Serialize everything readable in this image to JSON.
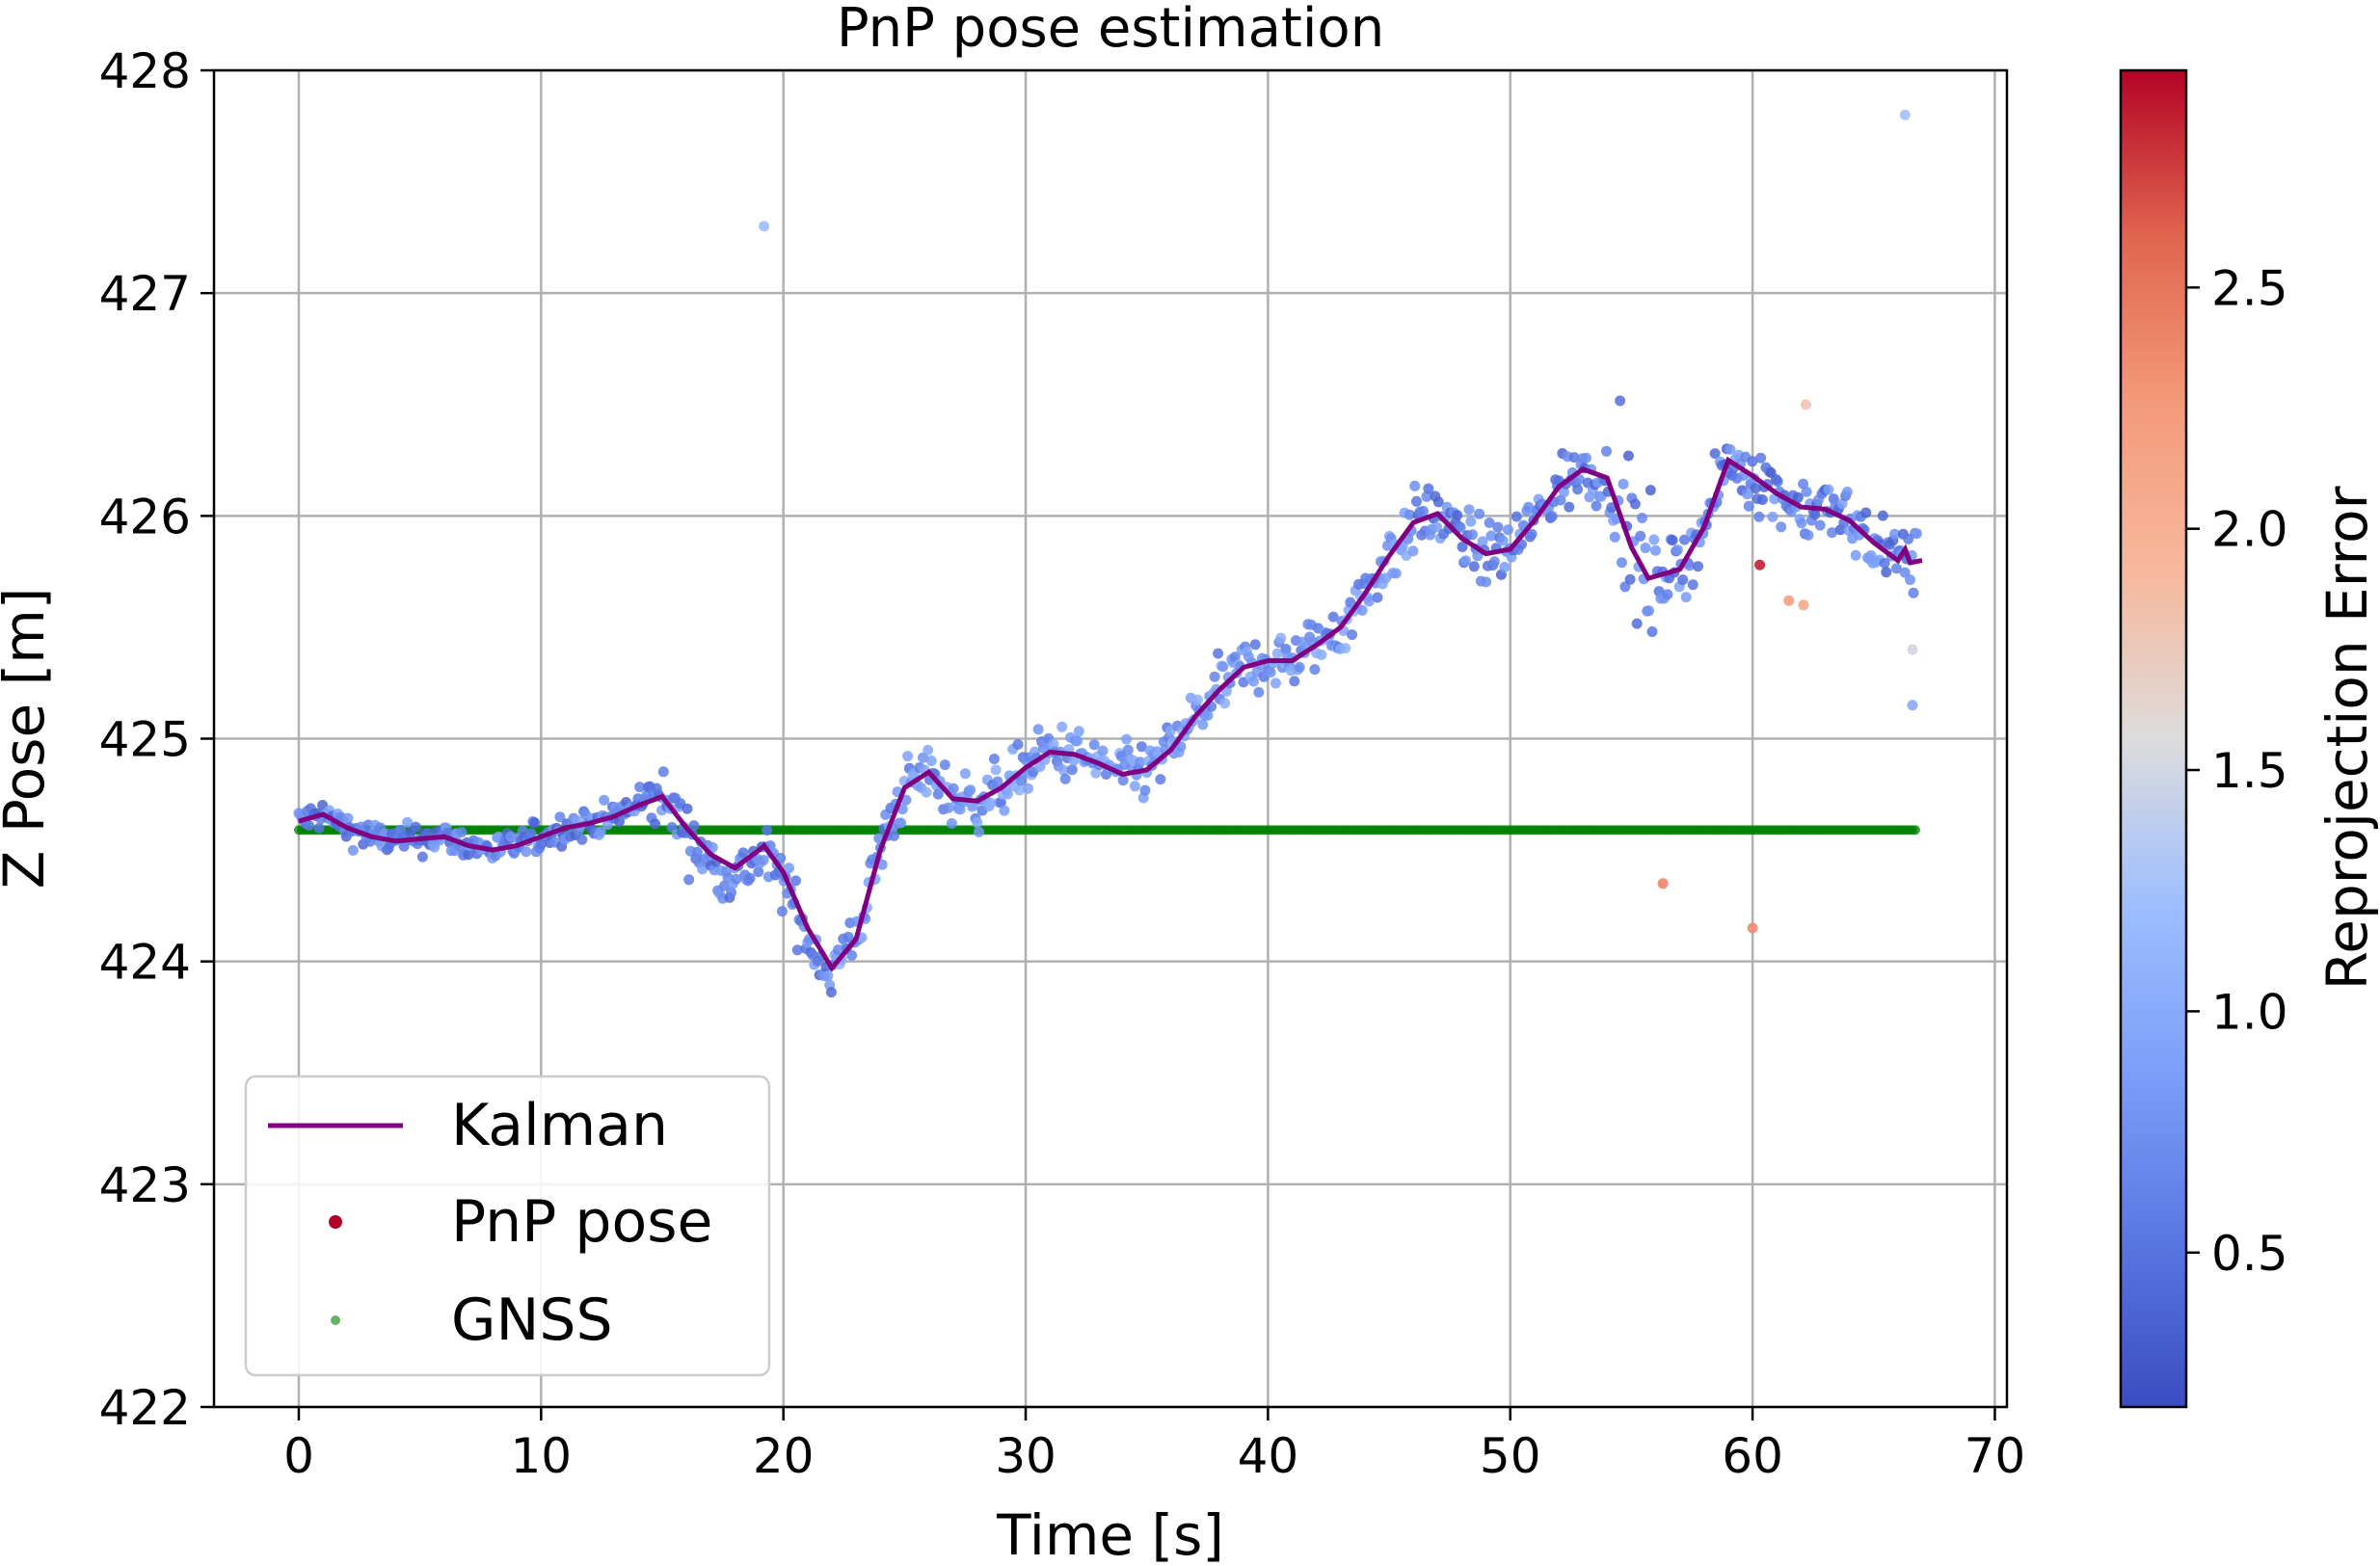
{
  "chart_data": {
    "type": "scatter",
    "title": "PnP pose estimation",
    "xlabel": "Time [s]",
    "ylabel": "Z Pose [m]",
    "xlim": [
      -3.5,
      70.5
    ],
    "ylim": [
      422,
      428
    ],
    "xticks": [
      "0",
      "10",
      "20",
      "30",
      "40",
      "50",
      "60",
      "70"
    ],
    "yticks": [
      "422",
      "423",
      "424",
      "425",
      "426",
      "427",
      "428"
    ],
    "grid": true,
    "legend_position": "lower-left",
    "legend": [
      "Kalman",
      "PnP pose",
      "GNSS"
    ],
    "colorbar": {
      "label": "Reprojection Error",
      "colormap": "coolwarm",
      "range": [
        0.18,
        2.95
      ],
      "ticks": [
        "0.5",
        "1.0",
        "1.5",
        "2.0",
        "2.5"
      ]
    },
    "series": [
      {
        "name": "Kalman",
        "kind": "line",
        "color": "#800080",
        "points": [
          [
            0,
            424.63
          ],
          [
            1,
            424.66
          ],
          [
            2,
            424.6
          ],
          [
            3,
            424.56
          ],
          [
            4,
            424.54
          ],
          [
            5,
            424.55
          ],
          [
            6,
            424.56
          ],
          [
            7,
            424.52
          ],
          [
            8,
            424.5
          ],
          [
            9,
            424.52
          ],
          [
            10,
            424.56
          ],
          [
            11,
            424.6
          ],
          [
            12,
            424.62
          ],
          [
            13,
            424.65
          ],
          [
            14,
            424.7
          ],
          [
            15,
            424.74
          ],
          [
            16,
            424.6
          ],
          [
            17,
            424.48
          ],
          [
            18,
            424.42
          ],
          [
            19,
            424.5
          ],
          [
            19.2,
            424.52
          ],
          [
            20,
            424.4
          ],
          [
            21,
            424.15
          ],
          [
            22,
            423.97
          ],
          [
            23,
            424.1
          ],
          [
            24,
            424.5
          ],
          [
            25,
            424.78
          ],
          [
            26,
            424.85
          ],
          [
            27,
            424.73
          ],
          [
            28,
            424.72
          ],
          [
            29,
            424.78
          ],
          [
            30,
            424.87
          ],
          [
            31,
            424.94
          ],
          [
            32,
            424.93
          ],
          [
            33,
            424.89
          ],
          [
            34,
            424.84
          ],
          [
            35,
            424.86
          ],
          [
            36,
            424.95
          ],
          [
            37,
            425.1
          ],
          [
            38,
            425.22
          ],
          [
            39,
            425.32
          ],
          [
            40,
            425.35
          ],
          [
            41,
            425.35
          ],
          [
            42,
            425.42
          ],
          [
            43,
            425.5
          ],
          [
            44,
            425.65
          ],
          [
            45,
            425.82
          ],
          [
            46,
            425.97
          ],
          [
            47,
            426.01
          ],
          [
            48,
            425.9
          ],
          [
            49,
            425.83
          ],
          [
            50,
            425.85
          ],
          [
            51,
            425.98
          ],
          [
            52,
            426.13
          ],
          [
            53,
            426.21
          ],
          [
            54,
            426.17
          ],
          [
            55,
            425.86
          ],
          [
            55.7,
            425.72
          ],
          [
            57,
            425.76
          ],
          [
            58,
            425.95
          ],
          [
            59,
            426.25
          ],
          [
            60,
            426.18
          ],
          [
            61,
            426.1
          ],
          [
            62,
            426.04
          ],
          [
            63,
            426.03
          ],
          [
            64,
            425.98
          ],
          [
            65,
            425.88
          ],
          [
            66,
            425.8
          ],
          [
            66.3,
            425.85
          ],
          [
            66.5,
            425.79
          ],
          [
            67,
            425.8
          ]
        ]
      },
      {
        "name": "PnP pose",
        "kind": "scatter",
        "colored_by": "Reprojection Error",
        "points_note": "dense scatter approx. 0–67 s following the Kalman track with ~0.1 m spread",
        "outliers": [
          {
            "t": 19.2,
            "z": 427.3,
            "err": 1.2
          },
          {
            "t": 66.3,
            "z": 427.8,
            "err": 1.25
          },
          {
            "t": 56.3,
            "z": 424.35,
            "err": 2.4
          },
          {
            "t": 60.0,
            "z": 424.15,
            "err": 2.35
          },
          {
            "t": 60.3,
            "z": 425.78,
            "err": 2.85
          },
          {
            "t": 61.5,
            "z": 425.62,
            "err": 2.2
          },
          {
            "t": 62.1,
            "z": 425.6,
            "err": 2.1
          },
          {
            "t": 62.2,
            "z": 426.5,
            "err": 1.8
          },
          {
            "t": 66.6,
            "z": 425.4,
            "err": 1.5
          },
          {
            "t": 66.6,
            "z": 425.15,
            "err": 1.0
          }
        ]
      },
      {
        "name": "GNSS",
        "kind": "scatter",
        "color": "#008000",
        "t_range": [
          0,
          66.8
        ],
        "z": 424.59
      }
    ]
  }
}
